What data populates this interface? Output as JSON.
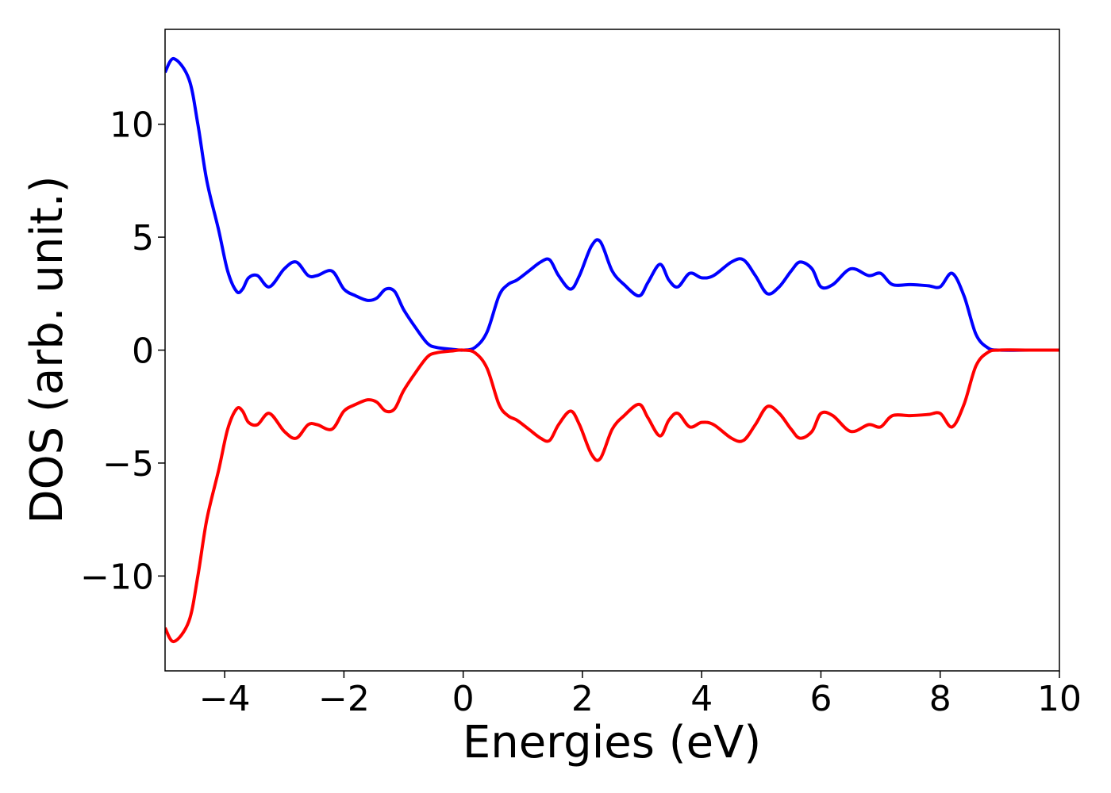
{
  "chart_data": {
    "type": "line",
    "title": "",
    "xlabel": "Energies (eV)",
    "ylabel": "DOS (arb. unit.)",
    "xlim": [
      -5,
      10
    ],
    "ylim": [
      -14.2,
      14.2
    ],
    "xticks": [
      -4,
      -2,
      0,
      2,
      4,
      6,
      8,
      10
    ],
    "xtick_labels": [
      "−4",
      "−2",
      "0",
      "2",
      "4",
      "6",
      "8",
      "10"
    ],
    "yticks": [
      10,
      5,
      0,
      -5,
      -10
    ],
    "ytick_labels": [
      "10",
      "5",
      "0",
      "−5",
      "−10"
    ],
    "grid": false,
    "legend": false,
    "series": [
      {
        "color": "#0000ff",
        "x": [
          -5.0,
          -4.85,
          -4.6,
          -4.45,
          -4.3,
          -4.1,
          -3.95,
          -3.8,
          -3.7,
          -3.6,
          -3.45,
          -3.25,
          -3.0,
          -2.8,
          -2.6,
          -2.45,
          -2.2,
          -2.0,
          -1.8,
          -1.6,
          -1.45,
          -1.3,
          -1.15,
          -1.0,
          -0.8,
          -0.6,
          -0.45,
          -0.2,
          0.0,
          0.2,
          0.4,
          0.6,
          0.75,
          0.9,
          1.1,
          1.3,
          1.45,
          1.6,
          1.8,
          1.95,
          2.15,
          2.3,
          2.5,
          2.7,
          2.95,
          3.1,
          3.3,
          3.45,
          3.6,
          3.8,
          4.0,
          4.2,
          4.5,
          4.7,
          4.9,
          5.1,
          5.3,
          5.5,
          5.65,
          5.85,
          6.0,
          6.2,
          6.5,
          6.8,
          7.0,
          7.2,
          7.5,
          7.8,
          8.0,
          8.2,
          8.4,
          8.6,
          8.8,
          9.0,
          9.5,
          10.0
        ],
        "y": [
          12.3,
          12.9,
          12.0,
          10.0,
          7.5,
          5.3,
          3.5,
          2.6,
          2.7,
          3.2,
          3.3,
          2.8,
          3.6,
          3.9,
          3.3,
          3.3,
          3.5,
          2.7,
          2.4,
          2.2,
          2.3,
          2.7,
          2.6,
          1.8,
          1.0,
          0.3,
          0.12,
          0.04,
          0.0,
          0.12,
          0.8,
          2.4,
          2.9,
          3.1,
          3.5,
          3.9,
          4.0,
          3.3,
          2.7,
          3.3,
          4.6,
          4.8,
          3.5,
          2.9,
          2.4,
          3.0,
          3.8,
          3.1,
          2.8,
          3.4,
          3.2,
          3.3,
          3.9,
          4.0,
          3.3,
          2.5,
          2.8,
          3.5,
          3.9,
          3.6,
          2.8,
          2.9,
          3.6,
          3.3,
          3.4,
          2.9,
          2.9,
          2.85,
          2.8,
          3.4,
          2.4,
          0.7,
          0.1,
          0.0,
          0.0,
          0.0
        ]
      },
      {
        "color": "#ff0000",
        "x": [
          -5.0,
          -4.85,
          -4.6,
          -4.45,
          -4.3,
          -4.1,
          -3.95,
          -3.8,
          -3.7,
          -3.6,
          -3.45,
          -3.25,
          -3.0,
          -2.8,
          -2.6,
          -2.45,
          -2.2,
          -2.0,
          -1.8,
          -1.6,
          -1.45,
          -1.3,
          -1.15,
          -1.0,
          -0.8,
          -0.6,
          -0.45,
          -0.2,
          0.0,
          0.2,
          0.4,
          0.6,
          0.75,
          0.9,
          1.1,
          1.3,
          1.45,
          1.6,
          1.8,
          1.95,
          2.15,
          2.3,
          2.5,
          2.7,
          2.95,
          3.1,
          3.3,
          3.45,
          3.6,
          3.8,
          4.0,
          4.2,
          4.5,
          4.7,
          4.9,
          5.1,
          5.3,
          5.5,
          5.65,
          5.85,
          6.0,
          6.2,
          6.5,
          6.8,
          7.0,
          7.2,
          7.5,
          7.8,
          8.0,
          8.2,
          8.4,
          8.6,
          8.8,
          9.0,
          9.5,
          10.0
        ],
        "y": [
          -12.3,
          -12.9,
          -12.0,
          -10.0,
          -7.5,
          -5.3,
          -3.5,
          -2.6,
          -2.7,
          -3.2,
          -3.3,
          -2.8,
          -3.6,
          -3.9,
          -3.3,
          -3.3,
          -3.5,
          -2.7,
          -2.4,
          -2.2,
          -2.3,
          -2.7,
          -2.6,
          -1.8,
          -1.0,
          -0.3,
          -0.12,
          -0.04,
          0.0,
          -0.12,
          -0.8,
          -2.4,
          -2.9,
          -3.1,
          -3.5,
          -3.9,
          -4.0,
          -3.3,
          -2.7,
          -3.3,
          -4.6,
          -4.8,
          -3.5,
          -2.9,
          -2.4,
          -3.0,
          -3.8,
          -3.1,
          -2.8,
          -3.4,
          -3.2,
          -3.3,
          -3.9,
          -4.0,
          -3.3,
          -2.5,
          -2.8,
          -3.5,
          -3.9,
          -3.6,
          -2.8,
          -2.9,
          -3.6,
          -3.3,
          -3.4,
          -2.9,
          -2.9,
          -2.85,
          -2.8,
          -3.4,
          -2.4,
          -0.7,
          -0.1,
          0.0,
          0.0,
          0.0
        ]
      }
    ]
  }
}
